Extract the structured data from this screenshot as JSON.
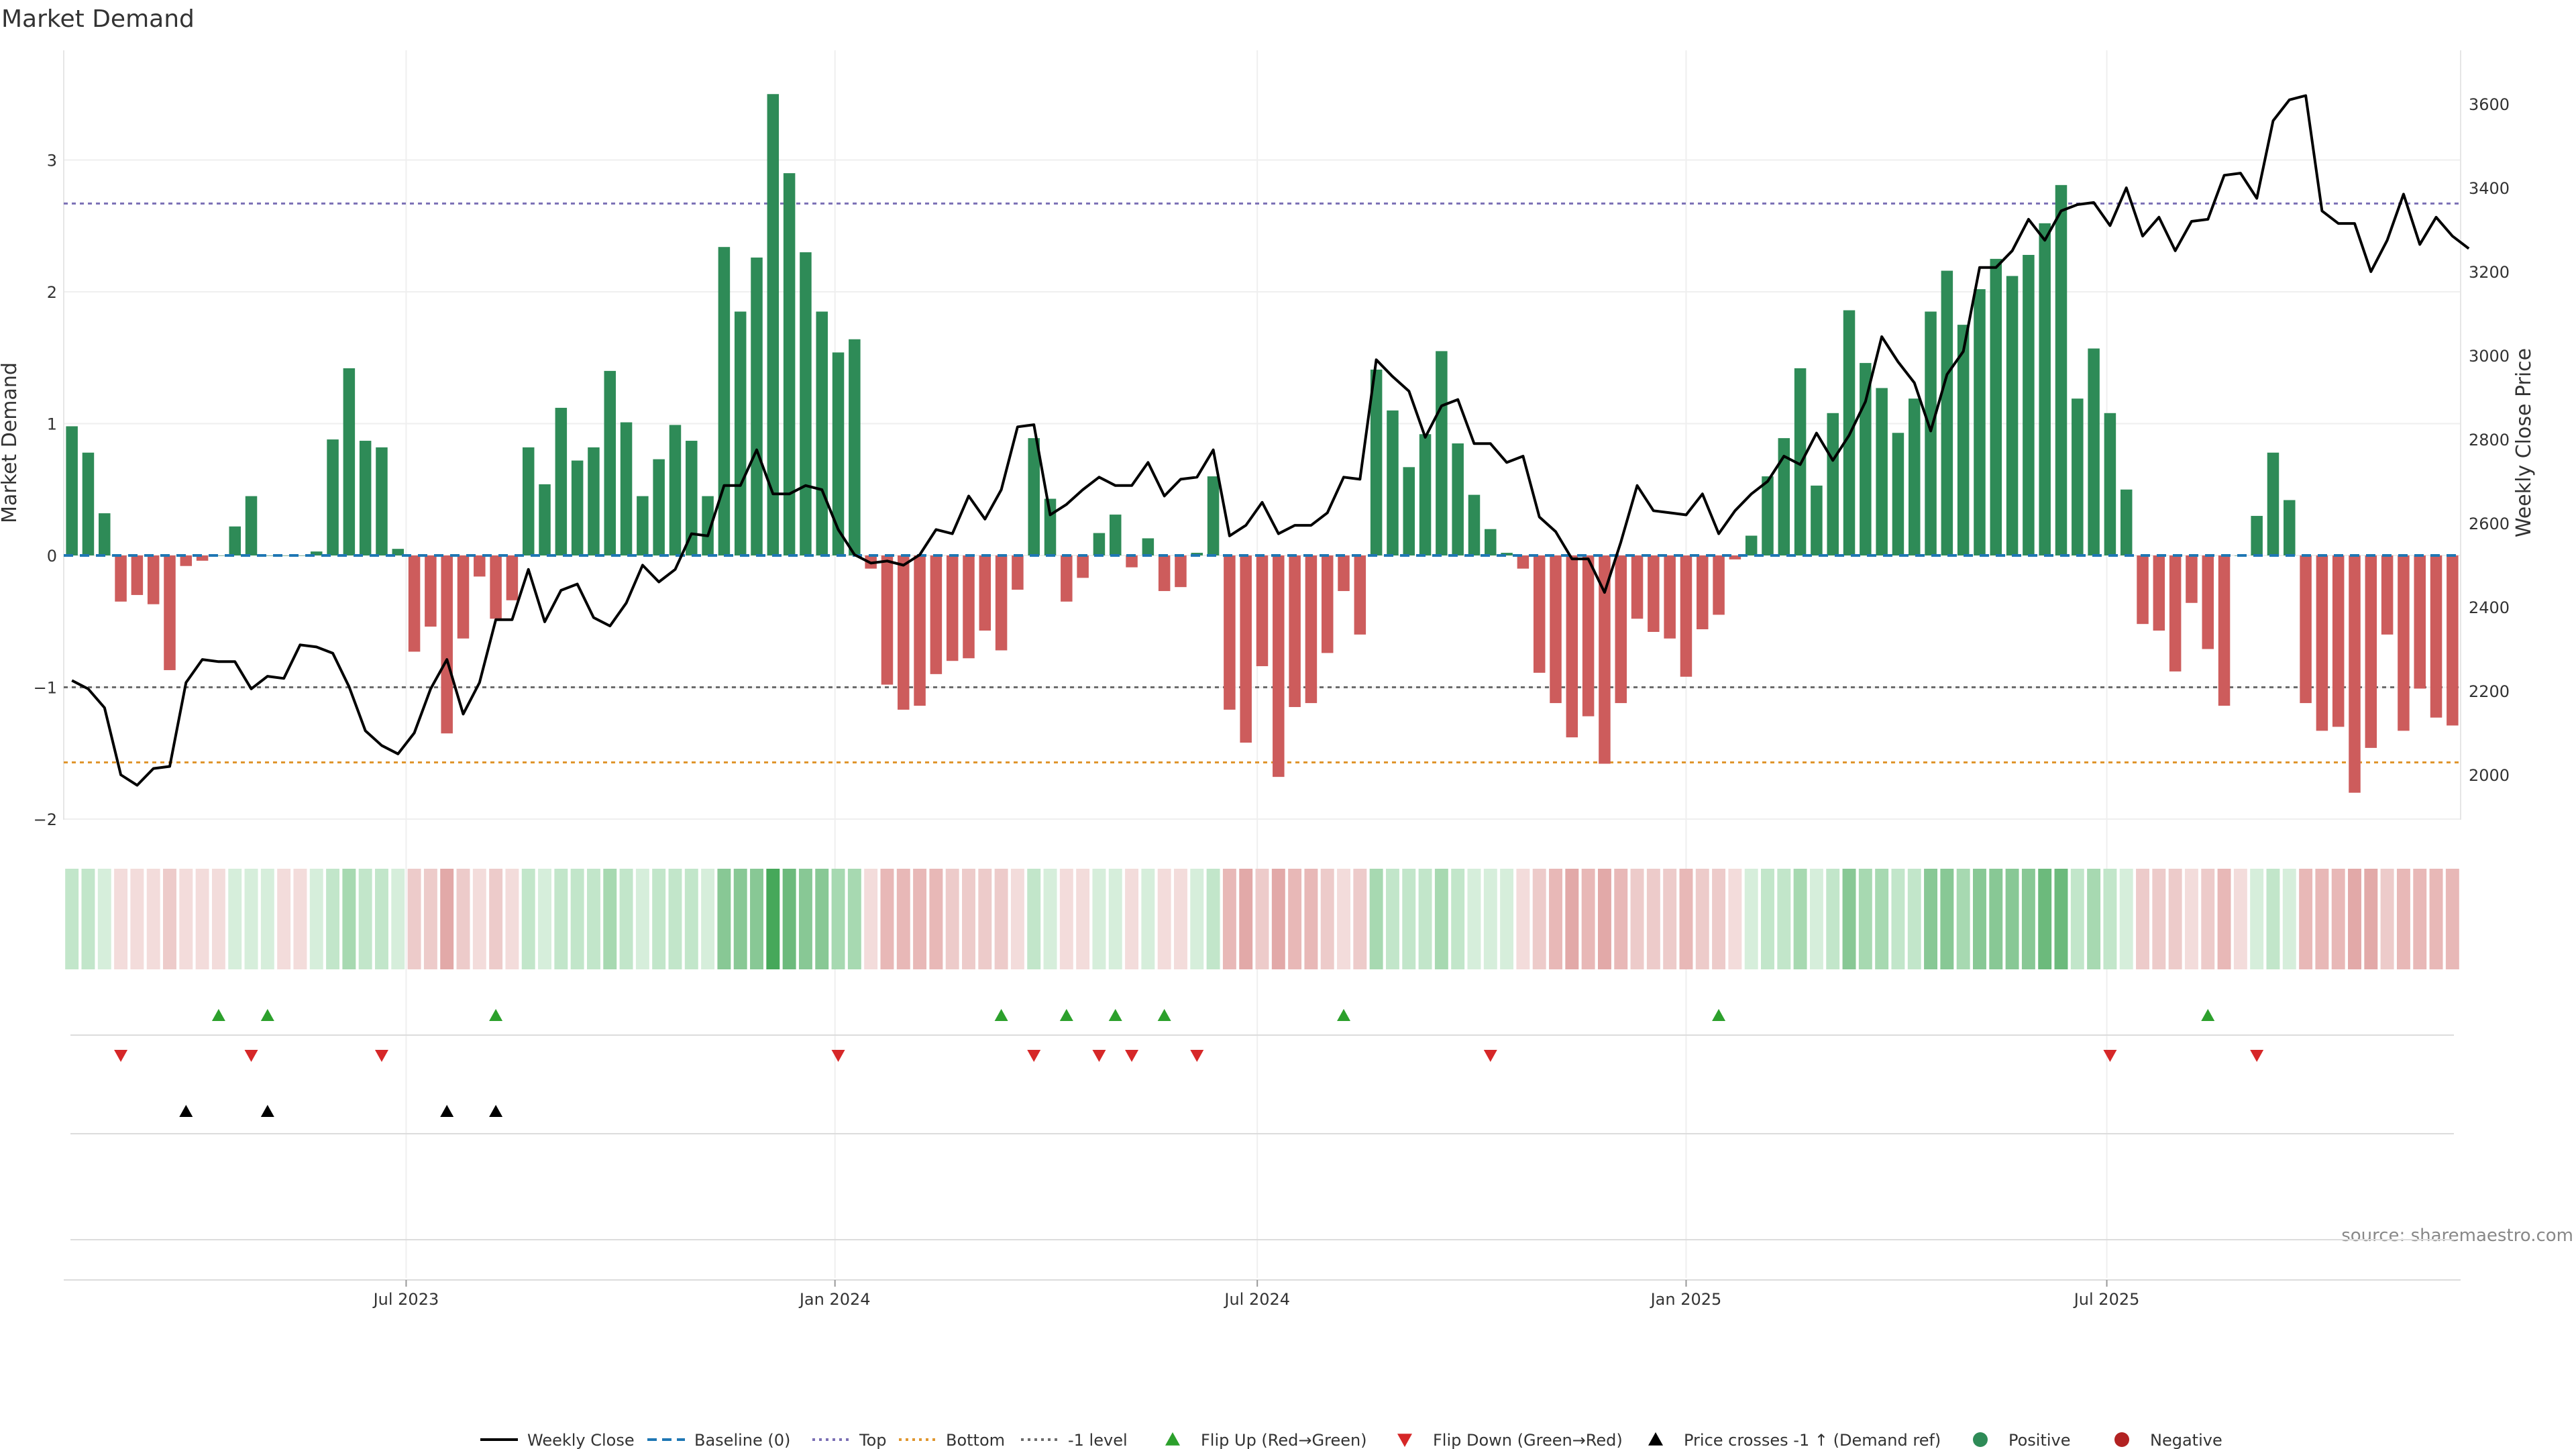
{
  "chart_data": {
    "type": "bar",
    "title": "Market Demand",
    "ylabel_left": "Market Demand",
    "ylabel_right": "Weekly Close Price",
    "ylim_left": [
      -2.2,
      3.8
    ],
    "ylim_right": [
      1850,
      3700
    ],
    "yticks_left": [
      -2,
      -1,
      0,
      1,
      2,
      3
    ],
    "ytick_labels_left": [
      "−2",
      "−1",
      "0",
      "1",
      "2",
      "3"
    ],
    "yticks_right": [
      2000,
      2200,
      2400,
      2600,
      2800,
      3000,
      3200,
      3400,
      3600
    ],
    "ytick_labels_right": [
      "2000",
      "2200",
      "2400",
      "2600",
      "2800",
      "3000",
      "3200",
      "3400",
      "3600"
    ],
    "xticks": [
      {
        "week": 20.5,
        "label": "Jul 2023"
      },
      {
        "week": 46.8,
        "label": "Jan 2024"
      },
      {
        "week": 72.7,
        "label": "Jul 2024"
      },
      {
        "week": 99,
        "label": "Jan 2025"
      },
      {
        "week": 124.8,
        "label": "Jul 2025"
      }
    ],
    "reference_levels": {
      "top": 2.67,
      "bottom": -1.57,
      "minus_one": -1.0,
      "baseline": 0
    },
    "demand": [
      0.98,
      0.78,
      0.32,
      -0.35,
      -0.3,
      -0.37,
      -0.87,
      -0.08,
      -0.04,
      0,
      0.22,
      0.45,
      0,
      0,
      0,
      0.03,
      0.88,
      1.42,
      0.87,
      0.82,
      0.05,
      -0.73,
      -0.54,
      -1.35,
      -0.63,
      -0.16,
      -0.48,
      -0.34,
      0.82,
      0.54,
      1.12,
      0.72,
      0.82,
      1.4,
      1.01,
      0.45,
      0.73,
      0.99,
      0.87,
      0.45,
      2.34,
      1.85,
      2.26,
      3.5,
      2.9,
      2.3,
      1.85,
      1.54,
      1.64,
      -0.1,
      -0.98,
      -1.17,
      -1.14,
      -0.9,
      -0.8,
      -0.78,
      -0.57,
      -0.72,
      -0.26,
      0.89,
      0.43,
      -0.35,
      -0.17,
      0.17,
      0.31,
      -0.09,
      0.13,
      -0.27,
      -0.24,
      0.02,
      0.6,
      -1.17,
      -1.42,
      -0.84,
      -1.68,
      -1.15,
      -1.12,
      -0.74,
      -0.27,
      -0.6,
      1.41,
      1.1,
      0.67,
      0.92,
      1.55,
      0.85,
      0.46,
      0.2,
      0.02,
      -0.1,
      -0.89,
      -1.12,
      -1.38,
      -1.22,
      -1.58,
      -1.12,
      -0.48,
      -0.58,
      -0.63,
      -0.92,
      -0.56,
      -0.45,
      -0.03,
      0.15,
      0.6,
      0.89,
      1.42,
      0.53,
      1.08,
      1.86,
      1.46,
      1.27,
      0.93,
      1.19,
      1.85,
      2.16,
      1.75,
      2.02,
      2.25,
      2.12,
      2.28,
      2.52,
      2.81,
      1.19,
      1.57,
      1.08,
      0.5,
      -0.52,
      -0.57,
      -0.88,
      -0.36,
      -0.71,
      -1.14,
      0,
      0.3,
      0.78,
      0.42,
      -1.12,
      -1.33,
      -1.3,
      -1.8,
      -1.46,
      -0.6,
      -1.33,
      -1.01,
      -1.23,
      -1.29
    ],
    "weekly_close": [
      2225,
      2205,
      2160,
      2000,
      1975,
      2015,
      2020,
      2220,
      2275,
      2270,
      2270,
      2205,
      2235,
      2230,
      2310,
      2305,
      2290,
      2210,
      2105,
      2070,
      2050,
      2100,
      2205,
      2275,
      2145,
      2220,
      2370,
      2370,
      2490,
      2365,
      2440,
      2455,
      2375,
      2355,
      2410,
      2500,
      2460,
      2490,
      2575,
      2570,
      2690,
      2690,
      2775,
      2670,
      2670,
      2690,
      2680,
      2585,
      2525,
      2505,
      2510,
      2500,
      2525,
      2585,
      2575,
      2665,
      2610,
      2680,
      2830,
      2835,
      2620,
      2645,
      2680,
      2710,
      2690,
      2690,
      2745,
      2665,
      2705,
      2710,
      2775,
      2570,
      2595,
      2650,
      2575,
      2595,
      2595,
      2625,
      2710,
      2705,
      2990,
      2950,
      2915,
      2805,
      2880,
      2895,
      2790,
      2790,
      2745,
      2760,
      2615,
      2580,
      2515,
      2515,
      2435,
      2555,
      2690,
      2630,
      2625,
      2620,
      2670,
      2575,
      2630,
      2670,
      2700,
      2760,
      2740,
      2815,
      2750,
      2810,
      2890,
      3045,
      2985,
      2935,
      2820,
      2955,
      3010,
      3210,
      3210,
      3250,
      3325,
      3275,
      3345,
      3360,
      3365,
      3310,
      3400,
      3285,
      3330,
      3250,
      3320,
      3325,
      3430,
      3435,
      3375,
      3560,
      3610,
      3620,
      3345,
      3315,
      3315,
      3200,
      3275,
      3385,
      3265,
      3330,
      3285,
      3255
    ]
  },
  "strip_colors": {
    "green_shades": [
      "#d6eedb",
      "#c2e6ca",
      "#a7d9b1",
      "#88c895",
      "#6cba7c",
      "#46a85a"
    ],
    "red_shades": [
      "#f3dcdb",
      "#edcbca",
      "#e8b8b7",
      "#e2a9a8"
    ]
  },
  "events": {
    "flip_up": [
      9,
      12,
      26,
      57,
      61,
      64,
      67,
      78,
      101,
      131
    ],
    "flip_down": [
      3,
      11,
      19,
      47,
      59,
      63,
      65,
      69,
      87,
      125,
      134
    ],
    "price_crosses": [
      7,
      12,
      23,
      26
    ]
  },
  "legend": [
    {
      "label": "Weekly Close",
      "kind": "line",
      "color": "#000000"
    },
    {
      "label": "Baseline (0)",
      "kind": "dash",
      "color": "#1f77b4"
    },
    {
      "label": "Top",
      "kind": "dot",
      "color": "#7b6fb5"
    },
    {
      "label": "Bottom",
      "kind": "dot",
      "color": "#e0962e"
    },
    {
      "label": "-1 level",
      "kind": "dot",
      "color": "#6c6c6c"
    },
    {
      "label": "Flip Up (Red→Green)",
      "kind": "tri-up",
      "color": "#2ca02c"
    },
    {
      "label": "Flip Down (Green→Red)",
      "kind": "tri-down",
      "color": "#d62728"
    },
    {
      "label": "Price crosses -1 ↑ (Demand ref)",
      "kind": "tri-up",
      "color": "#000000"
    },
    {
      "label": "Positive",
      "kind": "dot-marker",
      "color": "#2e8b57"
    },
    {
      "label": "Negative",
      "kind": "dot-marker",
      "color": "#b22222"
    }
  ],
  "colors": {
    "positive_bar": "#2e8b57",
    "negative_bar": "#cd5c5c",
    "price_line": "#000000",
    "top_line": "#7b6fb5",
    "bottom_line": "#e0962e",
    "minus_one_line": "#6c6c6c",
    "baseline": "#1f77b4",
    "flip_up": "#2ca02c",
    "flip_down": "#d62728",
    "cross": "#000000"
  },
  "source_note": "source: sharemaestro.com"
}
